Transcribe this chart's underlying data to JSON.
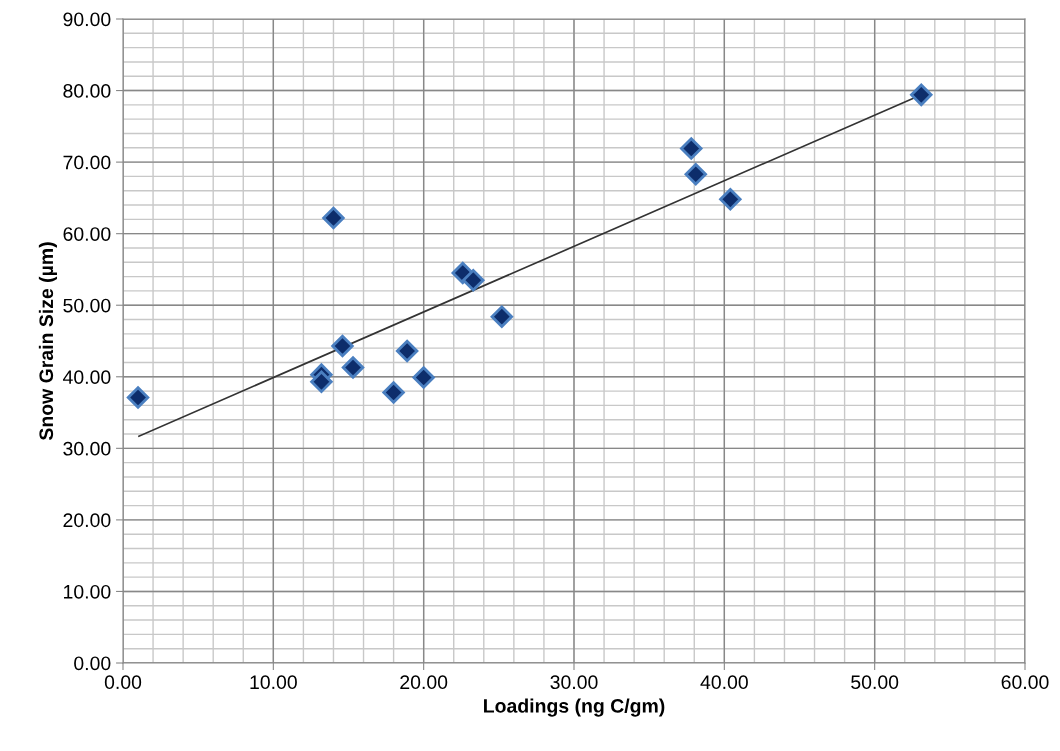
{
  "chart_data": {
    "type": "scatter",
    "xlabel": "Loadings (ng C/gm)",
    "ylabel": "Snow Grain Size (µm)",
    "xlim": [
      0,
      60
    ],
    "ylim": [
      0,
      90
    ],
    "xticks": [
      {
        "value": 0,
        "label": "0.00"
      },
      {
        "value": 10,
        "label": "10.00"
      },
      {
        "value": 20,
        "label": "20.00"
      },
      {
        "value": 30,
        "label": "30.00"
      },
      {
        "value": 40,
        "label": "40.00"
      },
      {
        "value": 50,
        "label": "50.00"
      },
      {
        "value": 60,
        "label": "60.00"
      }
    ],
    "yticks": [
      {
        "value": 0,
        "label": "0.00"
      },
      {
        "value": 10,
        "label": "10.00"
      },
      {
        "value": 20,
        "label": "20.00"
      },
      {
        "value": 30,
        "label": "30.00"
      },
      {
        "value": 40,
        "label": "40.00"
      },
      {
        "value": 50,
        "label": "50.00"
      },
      {
        "value": 60,
        "label": "60.00"
      },
      {
        "value": 70,
        "label": "70.00"
      },
      {
        "value": 80,
        "label": "80.00"
      },
      {
        "value": 90,
        "label": "90.00"
      }
    ],
    "grid": true,
    "series": [
      {
        "type": "line",
        "color": "#333333",
        "marker": "none",
        "x": [
          1.06,
          53.1
        ],
        "values": [
          31.7,
          79.4
        ]
      },
      {
        "color": "#0d2d6b",
        "marker": "diamond",
        "x": [
          1.0,
          14.0,
          13.2,
          13.2,
          14.6,
          15.3,
          18.0,
          18.9,
          20.0,
          22.6,
          23.3,
          25.2,
          37.8,
          38.1,
          40.4,
          53.1
        ],
        "values": [
          37.1,
          62.2,
          40.3,
          39.3,
          44.3,
          41.3,
          37.8,
          43.6,
          39.9,
          54.5,
          53.5,
          48.4,
          71.9,
          68.3,
          64.8,
          79.4
        ]
      }
    ]
  }
}
